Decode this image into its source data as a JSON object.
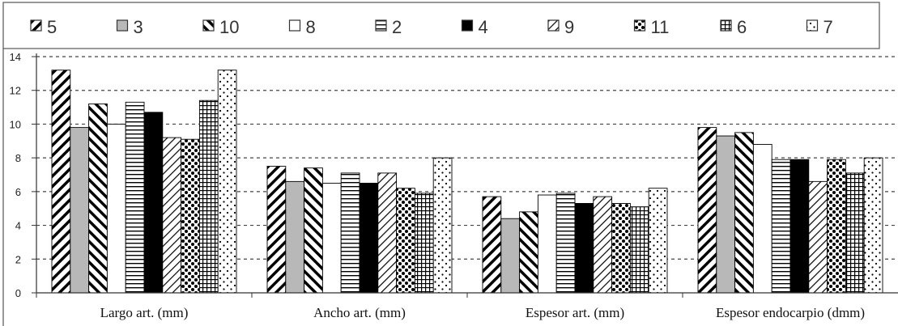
{
  "chart_data": {
    "type": "bar",
    "title": "",
    "xlabel": "",
    "ylabel": "",
    "ylim": [
      0,
      14
    ],
    "yticks": [
      "0",
      "2",
      "4",
      "6",
      "8",
      "10",
      "12",
      "14"
    ],
    "grid": "horizontal dashed",
    "legend_position": "top",
    "categories": [
      "Largo art. (mm)",
      "Ancho art. (mm)",
      "Espesor art. (mm)",
      "Espesor endocarpio (dmm)"
    ],
    "series": [
      {
        "name": "5",
        "pattern": "diag-thick-up",
        "values": [
          13.2,
          7.5,
          5.7,
          9.8
        ]
      },
      {
        "name": "3",
        "pattern": "solid-gray",
        "values": [
          9.8,
          6.6,
          4.4,
          9.3
        ]
      },
      {
        "name": "10",
        "pattern": "diag-thick-down",
        "values": [
          11.2,
          7.4,
          4.8,
          9.5
        ]
      },
      {
        "name": "8",
        "pattern": "white",
        "values": [
          10.0,
          6.5,
          5.8,
          8.8
        ]
      },
      {
        "name": "2",
        "pattern": "horizontal-lines",
        "values": [
          11.3,
          7.1,
          5.9,
          7.9
        ]
      },
      {
        "name": "4",
        "pattern": "solid-black",
        "values": [
          10.7,
          6.5,
          5.3,
          7.9
        ]
      },
      {
        "name": "9",
        "pattern": "diag-thin-up",
        "values": [
          9.2,
          7.1,
          5.7,
          6.6
        ]
      },
      {
        "name": "11",
        "pattern": "dots-black",
        "values": [
          9.1,
          6.2,
          5.3,
          7.9
        ]
      },
      {
        "name": "6",
        "pattern": "grid",
        "values": [
          11.4,
          5.9,
          5.1,
          7.1
        ]
      },
      {
        "name": "7",
        "pattern": "dots-sparse",
        "values": [
          13.2,
          8.0,
          6.2,
          8.0
        ]
      }
    ]
  }
}
